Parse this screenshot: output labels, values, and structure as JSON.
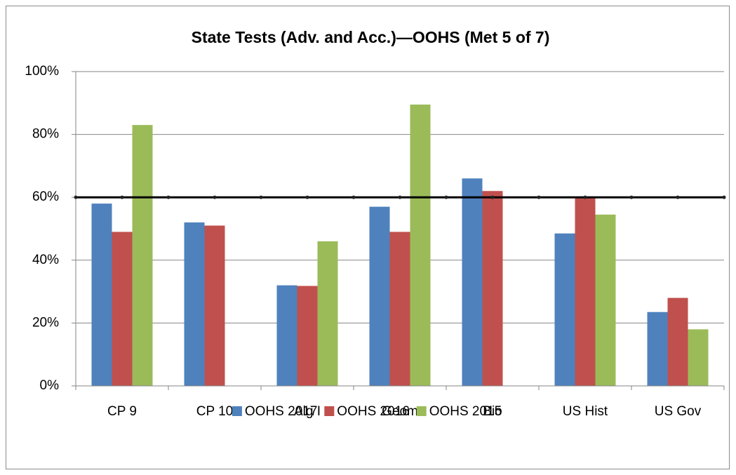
{
  "chart_data": {
    "type": "bar",
    "title": "State Tests (Adv. and Acc.)—OOHS (Met 5 of 7)",
    "categories": [
      "CP 9",
      "CP 10",
      "Alg I",
      "Geom",
      "Bio",
      "US Hist",
      "US Gov"
    ],
    "series": [
      {
        "name": "OOHS 2017",
        "color": "#4f81bd",
        "values": [
          58,
          52,
          32,
          57,
          66,
          48.5,
          23.5
        ]
      },
      {
        "name": "OOHS 2016",
        "color": "#c0504d",
        "values": [
          49,
          51,
          31.8,
          49,
          62,
          60,
          28
        ]
      },
      {
        "name": "OOHS 2015",
        "color": "#9bbb59",
        "values": [
          83,
          null,
          46,
          89.5,
          null,
          54.5,
          18
        ]
      }
    ],
    "target_line": 60,
    "ylim": [
      0,
      100
    ],
    "yticks": [
      {
        "value": 0,
        "label": "0%"
      },
      {
        "value": 20,
        "label": "20%"
      },
      {
        "value": 40,
        "label": "40%"
      },
      {
        "value": 60,
        "label": "60%"
      },
      {
        "value": 80,
        "label": "80%"
      },
      {
        "value": 100,
        "label": "100%"
      }
    ],
    "grid": true,
    "legend": "bottom"
  }
}
